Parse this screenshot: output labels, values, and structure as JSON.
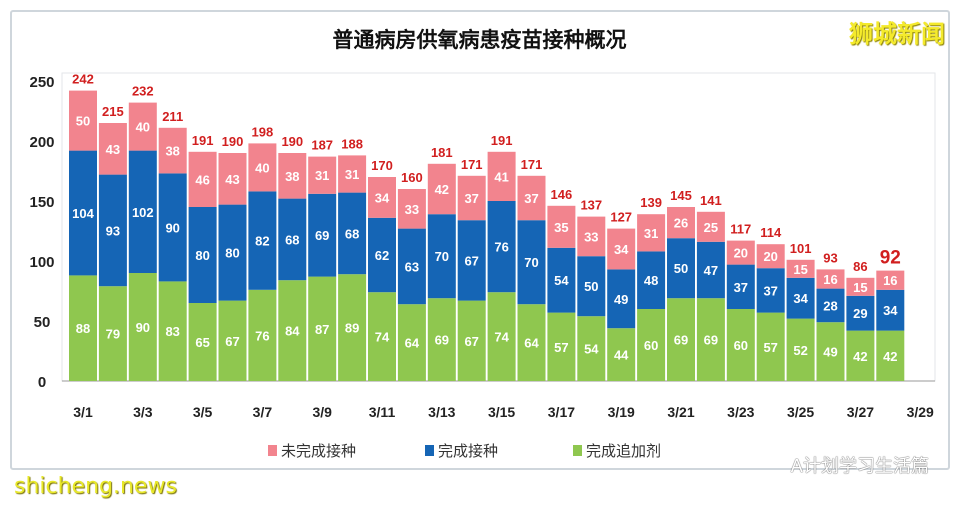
{
  "chart_data": {
    "type": "stacked-bar",
    "title": "普通病房供氧病患疫苗接种概况",
    "categories": [
      "3/1",
      "3/2",
      "3/3",
      "3/4",
      "3/5",
      "3/6",
      "3/7",
      "3/8",
      "3/9",
      "3/10",
      "3/11",
      "3/12",
      "3/13",
      "3/14",
      "3/15",
      "3/16",
      "3/17",
      "3/18",
      "3/19",
      "3/20",
      "3/21",
      "3/22",
      "3/23",
      "3/24",
      "3/25",
      "3/26",
      "3/27",
      "3/28"
    ],
    "x_tick_labels": [
      "3/1",
      "3/3",
      "3/5",
      "3/7",
      "3/9",
      "3/11",
      "3/13",
      "3/15",
      "3/17",
      "3/19",
      "3/21",
      "3/23",
      "3/25",
      "3/27",
      "3/29"
    ],
    "y_tick_labels": [
      "0",
      "50",
      "100",
      "150",
      "200",
      "250"
    ],
    "ylim": [
      0,
      250
    ],
    "grid": false,
    "legend_position": "bottom",
    "series": [
      {
        "name": "完成追加剂",
        "color": "#8fc74f",
        "values": [
          88,
          79,
          90,
          83,
          65,
          67,
          76,
          84,
          87,
          89,
          74,
          64,
          69,
          67,
          74,
          64,
          57,
          54,
          44,
          60,
          69,
          69,
          60,
          57,
          52,
          49,
          42,
          42
        ]
      },
      {
        "name": "完成接种",
        "color": "#1565b5",
        "values": [
          104,
          93,
          102,
          90,
          80,
          80,
          82,
          68,
          69,
          68,
          62,
          63,
          70,
          67,
          76,
          70,
          54,
          50,
          49,
          48,
          50,
          47,
          37,
          37,
          34,
          28,
          29,
          34
        ]
      },
      {
        "name": "未完成接种",
        "color": "#f2848e",
        "values": [
          50,
          43,
          40,
          38,
          46,
          43,
          40,
          38,
          31,
          31,
          34,
          33,
          42,
          37,
          41,
          37,
          35,
          33,
          34,
          31,
          26,
          25,
          20,
          20,
          15,
          16,
          15,
          16
        ]
      }
    ],
    "totals": [
      242,
      215,
      232,
      211,
      191,
      190,
      198,
      190,
      187,
      188,
      170,
      160,
      181,
      171,
      191,
      171,
      146,
      137,
      127,
      139,
      145,
      141,
      117,
      114,
      101,
      93,
      86,
      92
    ],
    "total_label_color": "#d11f1f"
  },
  "legend": [
    "未完成接种",
    "完成接种",
    "完成追加剂"
  ],
  "watermarks": {
    "top_right": "狮城新闻",
    "bottom_right": "A计划学习生活篇",
    "bottom_left": "shicheng.news"
  }
}
